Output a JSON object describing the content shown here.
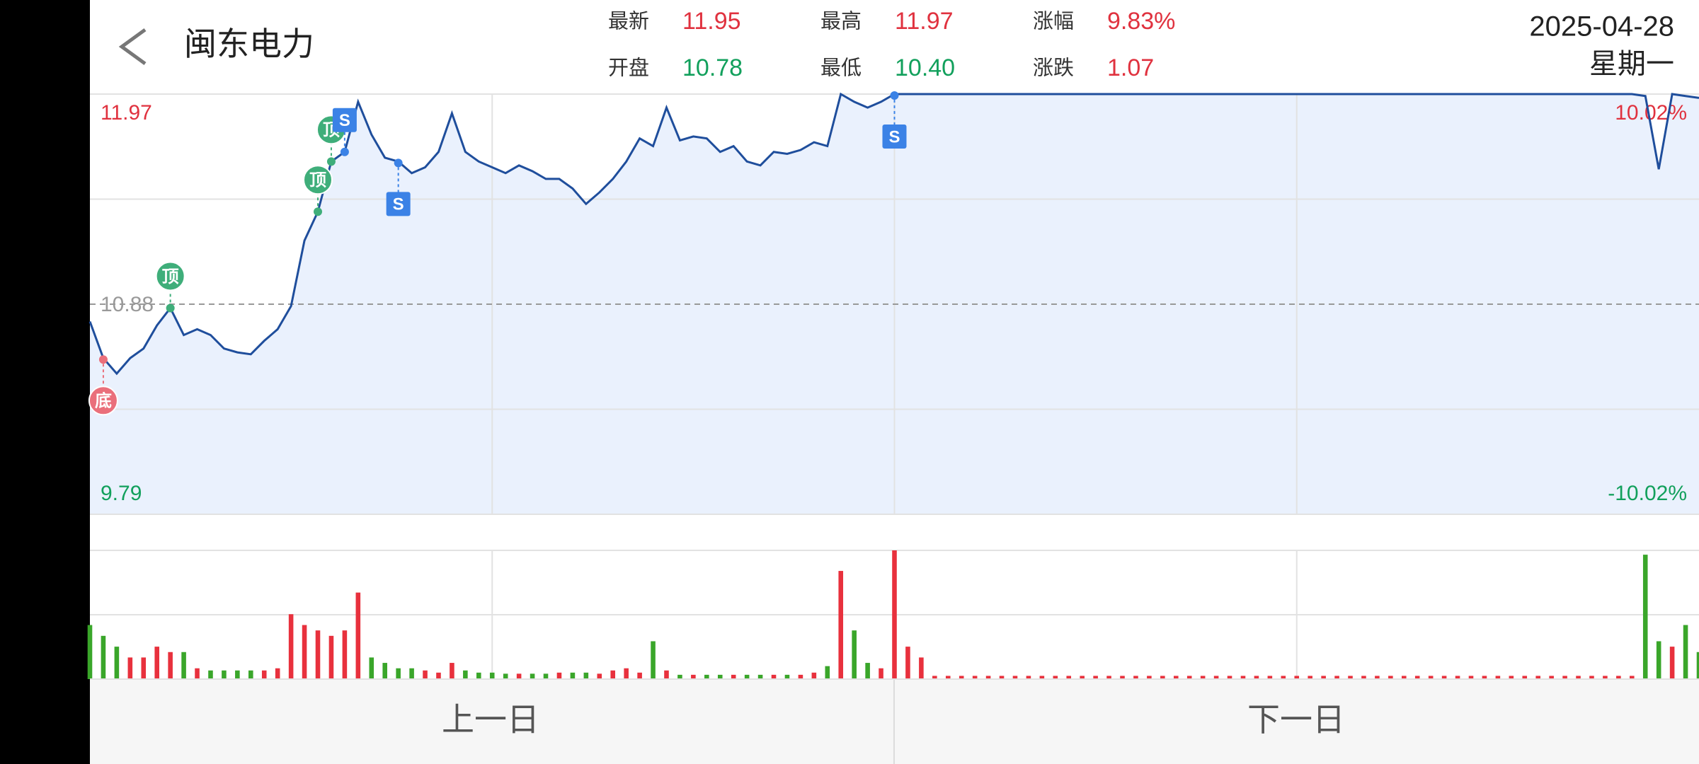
{
  "header": {
    "title": "闽东电力",
    "date": "2025-04-28",
    "weekday": "星期一"
  },
  "quote": [
    {
      "label": "最新",
      "value": "11.95",
      "color": "#e0323f"
    },
    {
      "label": "开盘",
      "value": "10.78",
      "color": "#12a05c"
    },
    {
      "label": "最高",
      "value": "11.97",
      "color": "#e0323f"
    },
    {
      "label": "最低",
      "value": "10.40",
      "color": "#12a05c"
    },
    {
      "label": "涨幅",
      "value": "9.83%",
      "color": "#e0323f"
    },
    {
      "label": "涨跌",
      "value": "1.07",
      "color": "#e0323f"
    }
  ],
  "buttons": [
    "上一日",
    "下一日"
  ],
  "chart_data": [
    {
      "type": "line",
      "color": "#1f4e9c",
      "fill": "#eaf1fd",
      "grid": true,
      "ylim": [
        9.79,
        11.97
      ],
      "yticks": [
        9.79,
        10.88,
        11.97
      ],
      "y2lim": [
        -10.02,
        10.02
      ],
      "y2ticks": [
        {
          "value": -10.02,
          "label": "-10.02%"
        },
        {
          "value": 10.02,
          "label": "10.02%"
        }
      ],
      "values": [
        10.79,
        10.6,
        10.52,
        10.6,
        10.65,
        10.77,
        10.86,
        10.72,
        10.75,
        10.72,
        10.65,
        10.63,
        10.62,
        10.69,
        10.75,
        10.87,
        11.21,
        11.36,
        11.62,
        11.67,
        11.93,
        11.76,
        11.64,
        11.62,
        11.56,
        11.59,
        11.67,
        11.87,
        11.67,
        11.62,
        11.59,
        11.56,
        11.6,
        11.57,
        11.53,
        11.53,
        11.48,
        11.4,
        11.46,
        11.53,
        11.62,
        11.74,
        11.7,
        11.9,
        11.73,
        11.75,
        11.74,
        11.67,
        11.7,
        11.62,
        11.6,
        11.67,
        11.66,
        11.68,
        11.72,
        11.7,
        11.97,
        11.93,
        11.9,
        11.93,
        11.97,
        11.97,
        11.97,
        11.97,
        11.97,
        11.97,
        11.97,
        11.97,
        11.97,
        11.97,
        11.97,
        11.97,
        11.97,
        11.97,
        11.97,
        11.97,
        11.97,
        11.97,
        11.97,
        11.97,
        11.97,
        11.97,
        11.97,
        11.97,
        11.97,
        11.97,
        11.97,
        11.97,
        11.97,
        11.97,
        11.97,
        11.97,
        11.97,
        11.97,
        11.97,
        11.97,
        11.97,
        11.97,
        11.97,
        11.97,
        11.97,
        11.97,
        11.97,
        11.97,
        11.97,
        11.97,
        11.97,
        11.97,
        11.97,
        11.97,
        11.97,
        11.97,
        11.97,
        11.97,
        11.97,
        11.97,
        11.96,
        11.58,
        11.97,
        11.96,
        11.95
      ],
      "annotations": [
        {
          "text": "底",
          "index": 1,
          "position": "below",
          "color": "#ea6f7b"
        },
        {
          "text": "顶",
          "index": 6,
          "position": "above",
          "color": "#3fae7a"
        },
        {
          "text": "顶",
          "index": 17,
          "position": "above",
          "color": "#3fae7a"
        },
        {
          "text": "顶",
          "index": 18,
          "position": "above",
          "color": "#3fae7a"
        },
        {
          "text": "S",
          "index": 19,
          "position": "above",
          "color": "#3b82e6"
        },
        {
          "text": "S",
          "index": 23,
          "position": "below",
          "color": "#3b82e6"
        },
        {
          "text": "S",
          "index": 60,
          "position": "below",
          "color": "#3b82e6"
        }
      ]
    },
    {
      "type": "bar",
      "up_color": "#e8313d",
      "down_color": "#3aa62a",
      "ylim": [
        0,
        119
      ],
      "values": [
        50,
        40,
        30,
        20,
        20,
        30,
        25,
        25,
        10,
        8,
        8,
        8,
        8,
        8,
        10,
        60,
        50,
        45,
        40,
        45,
        80,
        20,
        15,
        10,
        10,
        8,
        6,
        15,
        8,
        6,
        6,
        5,
        5,
        5,
        5,
        6,
        6,
        6,
        5,
        8,
        10,
        6,
        35,
        8,
        4,
        4,
        4,
        4,
        4,
        4,
        4,
        4,
        4,
        4,
        6,
        12,
        100,
        45,
        15,
        10,
        119,
        30,
        20,
        3,
        3,
        3,
        3,
        3,
        3,
        3,
        3,
        3,
        3,
        3,
        3,
        3,
        3,
        3,
        3,
        3,
        3,
        3,
        3,
        3,
        3,
        3,
        3,
        3,
        3,
        3,
        3,
        3,
        3,
        3,
        3,
        3,
        3,
        3,
        3,
        3,
        3,
        3,
        3,
        3,
        3,
        3,
        3,
        3,
        3,
        3,
        3,
        3,
        3,
        3,
        3,
        3,
        115,
        35,
        30,
        50,
        25
      ]
    }
  ]
}
